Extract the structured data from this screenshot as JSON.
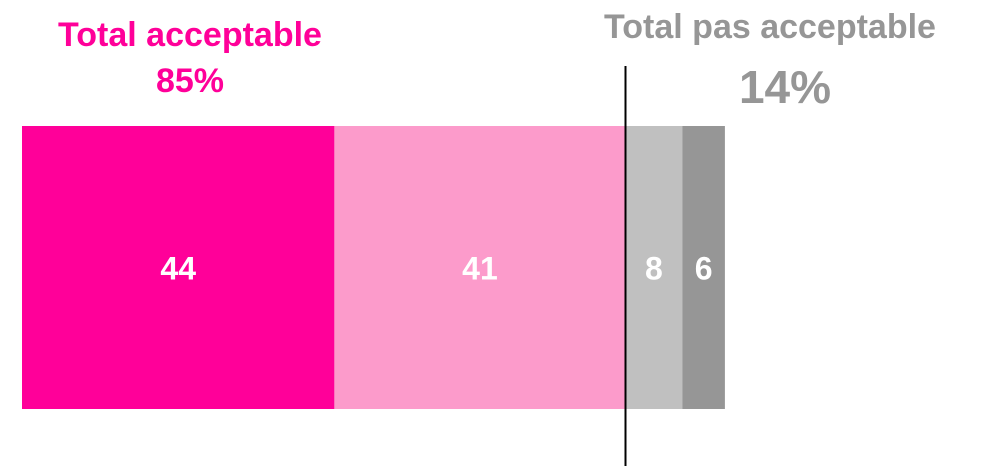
{
  "chart_data": {
    "type": "bar",
    "orientation": "horizontal-stacked",
    "categories": [
      ""
    ],
    "series": [
      {
        "values": [
          44
        ],
        "color": "#FF0099"
      },
      {
        "values": [
          41
        ],
        "color": "#FC9BCB"
      },
      {
        "values": [
          8
        ],
        "color": "#C0C0C0"
      },
      {
        "values": [
          6
        ],
        "color": "#969696"
      }
    ],
    "data_labels": [
      "44",
      "41",
      "8",
      "6"
    ],
    "annotations": {
      "acceptable": {
        "title": "Total acceptable",
        "value": "85%",
        "color": "#FF0099"
      },
      "not_acceptable": {
        "title": "Total  pas acceptable",
        "value": "14%",
        "color": "#969696"
      }
    },
    "divider_after_value": 85,
    "grid": false
  }
}
